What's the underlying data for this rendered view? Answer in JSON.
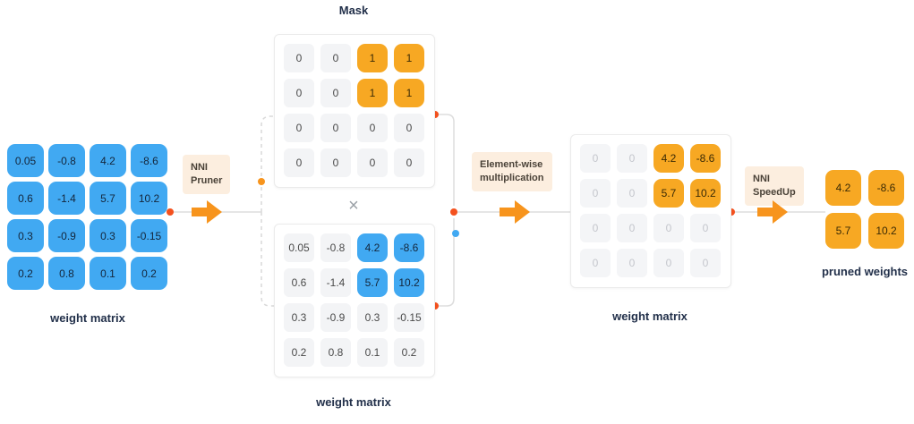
{
  "colors": {
    "blue": "#41A9F2",
    "orange": "#F7A823",
    "arrow": "#F7941D",
    "red_dot": "#F4511E",
    "blue_dot": "#41A9F2",
    "peach": "#FCEEDF",
    "label_text": "#22304A"
  },
  "labels": {
    "mask_title": "Mask",
    "left_matrix": "weight matrix",
    "middle_matrix": "weight matrix",
    "right_matrix": "weight matrix",
    "pruned": "pruned weights",
    "times": "×"
  },
  "steps": {
    "pruner_lines": [
      "NNI",
      "Pruner"
    ],
    "ewm_lines": [
      "Element-wise",
      "multiplication"
    ],
    "speedup_lines": [
      "NNI",
      "SpeedUp"
    ]
  },
  "matrices": {
    "left": {
      "values": [
        [
          "0.05",
          "-0.8",
          "4.2",
          "-8.6"
        ],
        [
          "0.6",
          "-1.4",
          "5.7",
          "10.2"
        ],
        [
          "0.3",
          "-0.9",
          "0.3",
          "-0.15"
        ],
        [
          "0.2",
          "0.8",
          "0.1",
          "0.2"
        ]
      ],
      "styles": [
        [
          "b",
          "b",
          "b",
          "b"
        ],
        [
          "b",
          "b",
          "b",
          "b"
        ],
        [
          "b",
          "b",
          "b",
          "b"
        ],
        [
          "b",
          "b",
          "b",
          "b"
        ]
      ]
    },
    "mask": {
      "values": [
        [
          "0",
          "0",
          "1",
          "1"
        ],
        [
          "0",
          "0",
          "1",
          "1"
        ],
        [
          "0",
          "0",
          "0",
          "0"
        ],
        [
          "0",
          "0",
          "0",
          "0"
        ]
      ],
      "styles": [
        [
          "p",
          "p",
          "o",
          "o"
        ],
        [
          "p",
          "p",
          "o",
          "o"
        ],
        [
          "p",
          "p",
          "p",
          "p"
        ],
        [
          "p",
          "p",
          "p",
          "p"
        ]
      ]
    },
    "middle": {
      "values": [
        [
          "0.05",
          "-0.8",
          "4.2",
          "-8.6"
        ],
        [
          "0.6",
          "-1.4",
          "5.7",
          "10.2"
        ],
        [
          "0.3",
          "-0.9",
          "0.3",
          "-0.15"
        ],
        [
          "0.2",
          "0.8",
          "0.1",
          "0.2"
        ]
      ],
      "styles": [
        [
          "p",
          "p",
          "b",
          "b"
        ],
        [
          "p",
          "p",
          "b",
          "b"
        ],
        [
          "p",
          "p",
          "p",
          "p"
        ],
        [
          "p",
          "p",
          "p",
          "p"
        ]
      ]
    },
    "right": {
      "values": [
        [
          "0",
          "0",
          "4.2",
          "-8.6"
        ],
        [
          "0",
          "0",
          "5.7",
          "10.2"
        ],
        [
          "0",
          "0",
          "0",
          "0"
        ],
        [
          "0",
          "0",
          "0",
          "0"
        ]
      ],
      "styles": [
        [
          "g",
          "g",
          "o",
          "o"
        ],
        [
          "g",
          "g",
          "o",
          "o"
        ],
        [
          "g",
          "g",
          "g",
          "g"
        ],
        [
          "g",
          "g",
          "g",
          "g"
        ]
      ]
    },
    "pruned": {
      "values": [
        [
          "4.2",
          "-8.6"
        ],
        [
          "5.7",
          "10.2"
        ]
      ],
      "styles": [
        [
          "o",
          "o"
        ],
        [
          "o",
          "o"
        ]
      ]
    }
  }
}
